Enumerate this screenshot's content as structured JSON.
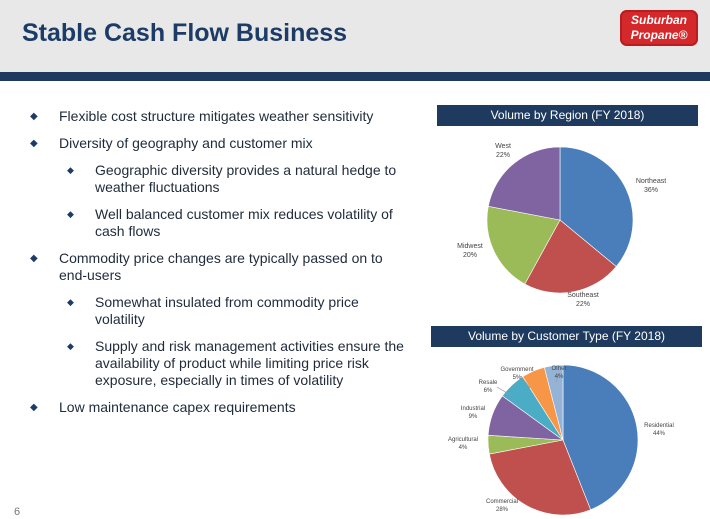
{
  "header": {
    "title": "Stable Cash Flow Business",
    "logo_line1": "Suburban",
    "logo_line2": "Propane®"
  },
  "bullets": [
    {
      "level": 1,
      "text": "Flexible cost structure mitigates weather sensitivity"
    },
    {
      "level": 1,
      "text": "Diversity of geography and customer mix"
    },
    {
      "level": 2,
      "text": "Geographic diversity provides a natural hedge to weather fluctuations"
    },
    {
      "level": 2,
      "text": "Well balanced customer mix reduces volatility of cash flows"
    },
    {
      "level": 1,
      "text": "Commodity price changes are typically passed on to end-users"
    },
    {
      "level": 2,
      "text": "Somewhat insulated from commodity price volatility"
    },
    {
      "level": 2,
      "text": "Supply and risk management activities ensure the availability of product while limiting price risk exposure, especially in times of volatility"
    },
    {
      "level": 1,
      "text": "Low maintenance capex requirements"
    }
  ],
  "page_number": "6",
  "chart_data": [
    {
      "type": "pie",
      "title": "Volume by Region (FY 2018)",
      "slices": [
        {
          "label": "Northeast",
          "value": 36,
          "value_label": "36%",
          "color": "#4a7ebb"
        },
        {
          "label": "Southeast",
          "value": 22,
          "value_label": "22%",
          "color": "#c0504d"
        },
        {
          "label": "Midwest",
          "value": 20,
          "value_label": "20%",
          "color": "#9bbb59"
        },
        {
          "label": "West",
          "value": 22,
          "value_label": "22%",
          "color": "#8064a2"
        }
      ]
    },
    {
      "type": "pie",
      "title": "Volume by Customer Type (FY 2018)",
      "slices": [
        {
          "label": "Residential",
          "value": 44,
          "value_label": "44%",
          "color": "#4a7ebb"
        },
        {
          "label": "Commercial",
          "value": 28,
          "value_label": "28%",
          "color": "#c0504d"
        },
        {
          "label": "Agricultural",
          "value": 4,
          "value_label": "4%",
          "color": "#9bbb59"
        },
        {
          "label": "Industrial",
          "value": 9,
          "value_label": "9%",
          "color": "#8064a2"
        },
        {
          "label": "Resale",
          "value": 6,
          "value_label": "6%",
          "color": "#4bacc6"
        },
        {
          "label": "Government",
          "value": 5,
          "value_label": "5%",
          "color": "#f79646"
        },
        {
          "label": "Other",
          "value": 4,
          "value_label": "4%",
          "color": "#95b3d7"
        }
      ]
    }
  ]
}
